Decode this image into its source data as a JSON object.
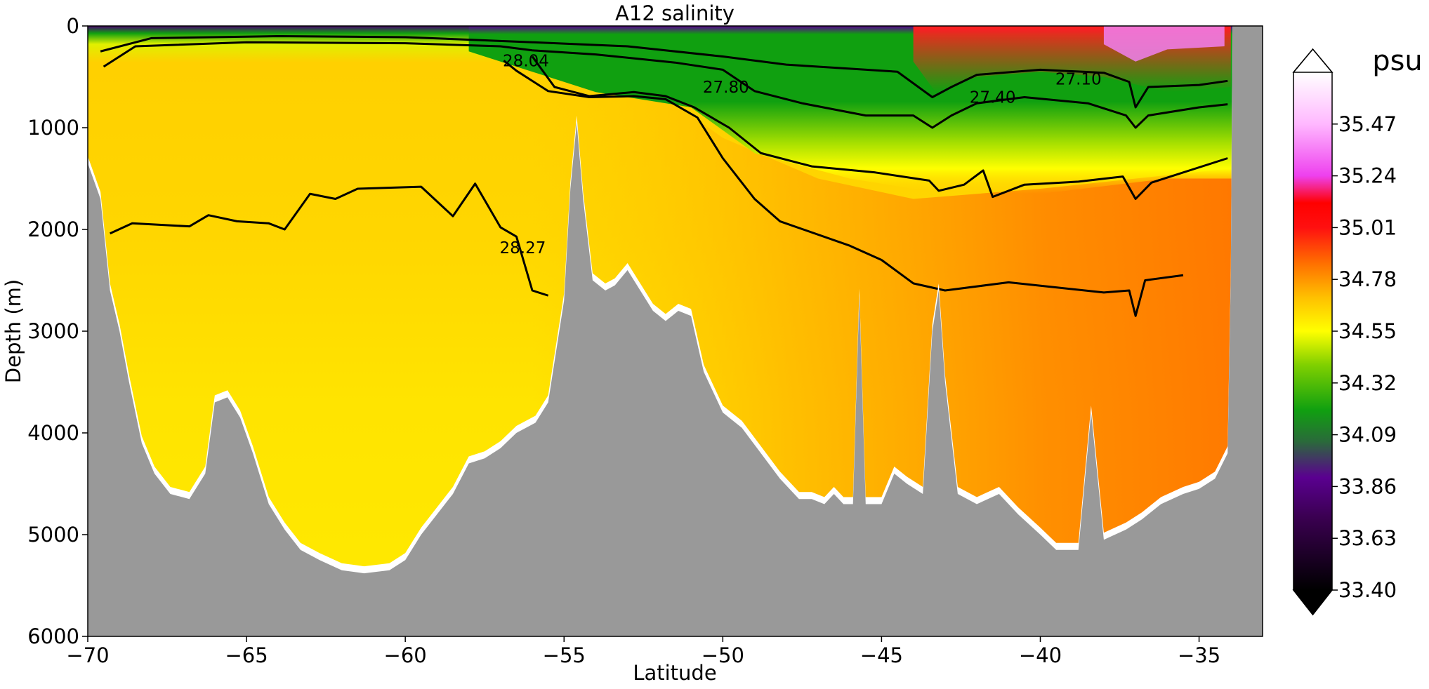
{
  "chart_data": {
    "type": "heatmap",
    "title": "A12 salinity",
    "xlabel": "Latitude",
    "ylabel": "Depth (m)",
    "xlim": [
      -70,
      -33
    ],
    "ylim": [
      6000,
      0
    ],
    "x_ticks": [
      -70,
      -65,
      -60,
      -55,
      -50,
      -45,
      -40,
      -35
    ],
    "x_tick_labels": [
      "−70",
      "−65",
      "−60",
      "−55",
      "−50",
      "−45",
      "−40",
      "−35"
    ],
    "y_ticks": [
      0,
      1000,
      2000,
      3000,
      4000,
      5000,
      6000
    ],
    "y_tick_labels": [
      "0",
      "1000",
      "2000",
      "3000",
      "4000",
      "5000",
      "6000"
    ],
    "colorbar": {
      "label": "psu",
      "min": 33.4,
      "max": 35.7,
      "extend": "both",
      "ticks": [
        33.4,
        33.63,
        33.86,
        34.09,
        34.32,
        34.55,
        34.78,
        35.01,
        35.24,
        35.47
      ],
      "tick_labels": [
        "33.40",
        "33.63",
        "33.86",
        "34.09",
        "34.32",
        "34.55",
        "34.78",
        "35.01",
        "35.24",
        "35.47"
      ],
      "stops": [
        {
          "v": 33.4,
          "c": "#000000"
        },
        {
          "v": 33.72,
          "c": "#3a0050"
        },
        {
          "v": 33.9,
          "c": "#5a0090"
        },
        {
          "v": 34.06,
          "c": "#2a6a3a"
        },
        {
          "v": 34.2,
          "c": "#10a010"
        },
        {
          "v": 34.4,
          "c": "#80d000"
        },
        {
          "v": 34.55,
          "c": "#ffff00"
        },
        {
          "v": 34.7,
          "c": "#ffc000"
        },
        {
          "v": 34.85,
          "c": "#ff7000"
        },
        {
          "v": 35.01,
          "c": "#ff1010"
        },
        {
          "v": 35.12,
          "c": "#ff0000"
        },
        {
          "v": 35.24,
          "c": "#ee40ee"
        },
        {
          "v": 35.47,
          "c": "#ffb8ff"
        },
        {
          "v": 35.7,
          "c": "#ffffff"
        }
      ]
    },
    "bathymetry_color": "#999999",
    "seafloor": [
      [
        -70.0,
        1350
      ],
      [
        -69.6,
        1700
      ],
      [
        -69.3,
        2600
      ],
      [
        -69.0,
        3000
      ],
      [
        -68.7,
        3500
      ],
      [
        -68.3,
        4100
      ],
      [
        -67.9,
        4400
      ],
      [
        -67.4,
        4600
      ],
      [
        -66.8,
        4650
      ],
      [
        -66.3,
        4400
      ],
      [
        -66.0,
        3700
      ],
      [
        -65.6,
        3650
      ],
      [
        -65.2,
        3850
      ],
      [
        -64.8,
        4200
      ],
      [
        -64.3,
        4700
      ],
      [
        -63.8,
        4950
      ],
      [
        -63.3,
        5150
      ],
      [
        -62.7,
        5250
      ],
      [
        -62.0,
        5350
      ],
      [
        -61.3,
        5380
      ],
      [
        -60.5,
        5350
      ],
      [
        -60.0,
        5250
      ],
      [
        -59.5,
        5000
      ],
      [
        -59.0,
        4800
      ],
      [
        -58.5,
        4600
      ],
      [
        -58.0,
        4300
      ],
      [
        -57.5,
        4250
      ],
      [
        -57.0,
        4150
      ],
      [
        -56.5,
        4000
      ],
      [
        -55.9,
        3900
      ],
      [
        -55.5,
        3700
      ],
      [
        -55.0,
        2700
      ],
      [
        -54.8,
        1600
      ],
      [
        -54.6,
        950
      ],
      [
        -54.4,
        1700
      ],
      [
        -54.1,
        2500
      ],
      [
        -53.7,
        2600
      ],
      [
        -53.4,
        2550
      ],
      [
        -53.0,
        2400
      ],
      [
        -52.6,
        2600
      ],
      [
        -52.2,
        2800
      ],
      [
        -51.8,
        2900
      ],
      [
        -51.4,
        2800
      ],
      [
        -51.0,
        2850
      ],
      [
        -50.6,
        3400
      ],
      [
        -50.0,
        3800
      ],
      [
        -49.4,
        3950
      ],
      [
        -48.8,
        4200
      ],
      [
        -48.2,
        4450
      ],
      [
        -47.6,
        4650
      ],
      [
        -47.2,
        4650
      ],
      [
        -46.8,
        4700
      ],
      [
        -46.5,
        4600
      ],
      [
        -46.2,
        4700
      ],
      [
        -45.9,
        4700
      ],
      [
        -45.7,
        2650
      ],
      [
        -45.5,
        4700
      ],
      [
        -45.0,
        4700
      ],
      [
        -44.6,
        4400
      ],
      [
        -44.2,
        4500
      ],
      [
        -43.7,
        4600
      ],
      [
        -43.4,
        3000
      ],
      [
        -43.2,
        2600
      ],
      [
        -43.0,
        3500
      ],
      [
        -42.6,
        4600
      ],
      [
        -42.0,
        4700
      ],
      [
        -41.3,
        4600
      ],
      [
        -40.7,
        4800
      ],
      [
        -40.0,
        5000
      ],
      [
        -39.5,
        5150
      ],
      [
        -38.8,
        5150
      ],
      [
        -38.4,
        3800
      ],
      [
        -38.0,
        5050
      ],
      [
        -37.3,
        4950
      ],
      [
        -36.8,
        4850
      ],
      [
        -36.2,
        4700
      ],
      [
        -35.5,
        4600
      ],
      [
        -35.0,
        4550
      ],
      [
        -34.5,
        4450
      ],
      [
        -34.1,
        4200
      ],
      [
        -34.0,
        2450
      ],
      [
        -33.95,
        0
      ],
      [
        -33.0,
        0
      ]
    ],
    "contours": [
      {
        "label": "27.10",
        "label_at": [
          -38.8,
          520
        ],
        "points": [
          [
            -69.6,
            250
          ],
          [
            -68.0,
            120
          ],
          [
            -64.0,
            100
          ],
          [
            -60.0,
            110
          ],
          [
            -56.0,
            160
          ],
          [
            -53.0,
            200
          ],
          [
            -50.0,
            300
          ],
          [
            -48.0,
            380
          ],
          [
            -46.0,
            420
          ],
          [
            -44.5,
            450
          ],
          [
            -43.4,
            700
          ],
          [
            -42.8,
            600
          ],
          [
            -42.0,
            480
          ],
          [
            -40.0,
            430
          ],
          [
            -38.0,
            460
          ],
          [
            -37.2,
            550
          ],
          [
            -37.0,
            800
          ],
          [
            -36.6,
            600
          ],
          [
            -35.0,
            580
          ],
          [
            -34.1,
            540
          ]
        ]
      },
      {
        "label": "27.40",
        "label_at": [
          -41.5,
          700
        ],
        "points": [
          [
            -69.5,
            400
          ],
          [
            -68.5,
            200
          ],
          [
            -65.0,
            160
          ],
          [
            -60.0,
            170
          ],
          [
            -57.0,
            200
          ],
          [
            -56.0,
            240
          ],
          [
            -54.0,
            280
          ],
          [
            -51.5,
            360
          ],
          [
            -50.0,
            430
          ],
          [
            -49.0,
            640
          ],
          [
            -47.5,
            760
          ],
          [
            -45.5,
            880
          ],
          [
            -44.0,
            880
          ],
          [
            -43.4,
            1000
          ],
          [
            -42.8,
            880
          ],
          [
            -42.0,
            760
          ],
          [
            -40.5,
            700
          ],
          [
            -38.5,
            760
          ],
          [
            -37.3,
            880
          ],
          [
            -37.0,
            1000
          ],
          [
            -36.6,
            880
          ],
          [
            -35.0,
            800
          ],
          [
            -34.1,
            770
          ]
        ]
      },
      {
        "label": "27.80",
        "label_at": [
          -49.9,
          600
        ],
        "points": [
          [
            -56.0,
            300
          ],
          [
            -55.3,
            600
          ],
          [
            -54.2,
            690
          ],
          [
            -52.8,
            650
          ],
          [
            -51.8,
            690
          ],
          [
            -50.9,
            800
          ],
          [
            -49.8,
            1000
          ],
          [
            -48.8,
            1250
          ],
          [
            -47.2,
            1380
          ],
          [
            -45.2,
            1440
          ],
          [
            -43.5,
            1520
          ],
          [
            -43.2,
            1620
          ],
          [
            -42.4,
            1560
          ],
          [
            -41.8,
            1420
          ],
          [
            -41.5,
            1680
          ],
          [
            -40.5,
            1560
          ],
          [
            -38.8,
            1530
          ],
          [
            -37.4,
            1480
          ],
          [
            -37.0,
            1700
          ],
          [
            -36.5,
            1540
          ],
          [
            -34.1,
            1300
          ]
        ]
      },
      {
        "label": "28.04",
        "label_at": [
          -56.2,
          340
        ],
        "points": [
          [
            -56.9,
            340
          ],
          [
            -56.5,
            440
          ],
          [
            -55.5,
            640
          ],
          [
            -54.2,
            700
          ],
          [
            -52.8,
            690
          ],
          [
            -51.8,
            720
          ],
          [
            -50.8,
            900
          ],
          [
            -50.0,
            1300
          ],
          [
            -49.0,
            1700
          ],
          [
            -48.2,
            1920
          ],
          [
            -46.0,
            2160
          ],
          [
            -45.0,
            2300
          ],
          [
            -44.0,
            2530
          ],
          [
            -43.0,
            2600
          ],
          [
            -41.0,
            2520
          ],
          [
            -39.5,
            2570
          ],
          [
            -38.0,
            2620
          ],
          [
            -37.2,
            2600
          ],
          [
            -37.0,
            2850
          ],
          [
            -36.7,
            2500
          ],
          [
            -35.5,
            2450
          ]
        ]
      },
      {
        "label": "28.27",
        "label_at": [
          -56.3,
          2180
        ],
        "points": [
          [
            -69.3,
            2040
          ],
          [
            -68.6,
            1940
          ],
          [
            -66.8,
            1970
          ],
          [
            -66.2,
            1860
          ],
          [
            -65.3,
            1920
          ],
          [
            -64.3,
            1940
          ],
          [
            -63.8,
            2000
          ],
          [
            -63.0,
            1650
          ],
          [
            -62.2,
            1700
          ],
          [
            -61.5,
            1600
          ],
          [
            -59.5,
            1580
          ],
          [
            -58.5,
            1870
          ],
          [
            -57.8,
            1550
          ],
          [
            -57.0,
            1980
          ],
          [
            -56.5,
            2070
          ],
          [
            -56.0,
            2600
          ],
          [
            -55.5,
            2650
          ]
        ]
      }
    ]
  }
}
